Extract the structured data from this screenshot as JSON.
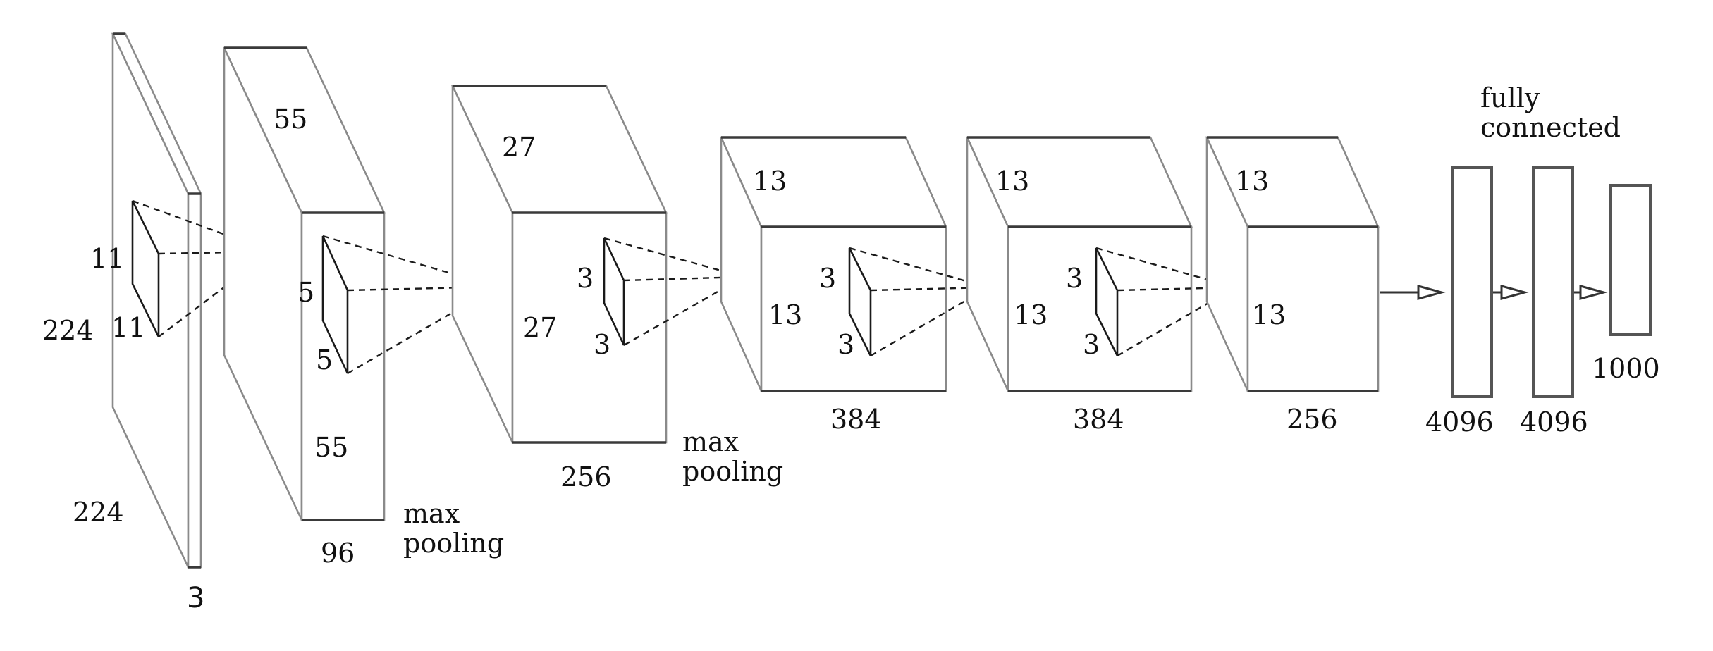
{
  "input": {
    "height": "224",
    "width": "224",
    "depth": "3",
    "kernel_h": "11",
    "kernel_w": "11"
  },
  "conv1": {
    "spatial_top": "55",
    "spatial_side": "55",
    "depth": "96",
    "kernel_h": "5",
    "kernel_w": "5",
    "pool_line1": "max",
    "pool_line2": "pooling"
  },
  "conv2": {
    "spatial_top": "27",
    "spatial_side": "27",
    "depth": "256",
    "kernel_h": "3",
    "kernel_w": "3",
    "pool_line1": "max",
    "pool_line2": "pooling"
  },
  "conv3": {
    "spatial_top": "13",
    "spatial_side": "13",
    "depth": "384",
    "kernel_h": "3",
    "kernel_w": "3"
  },
  "conv4": {
    "spatial_top": "13",
    "spatial_side": "13",
    "depth": "384",
    "kernel_h": "3",
    "kernel_w": "3"
  },
  "conv5": {
    "spatial_top": "13",
    "spatial_side": "13",
    "depth": "256"
  },
  "fc": {
    "heading_line1": "fully",
    "heading_line2": "connected",
    "fc6": "4096",
    "fc7": "4096",
    "fc8": "1000"
  }
}
